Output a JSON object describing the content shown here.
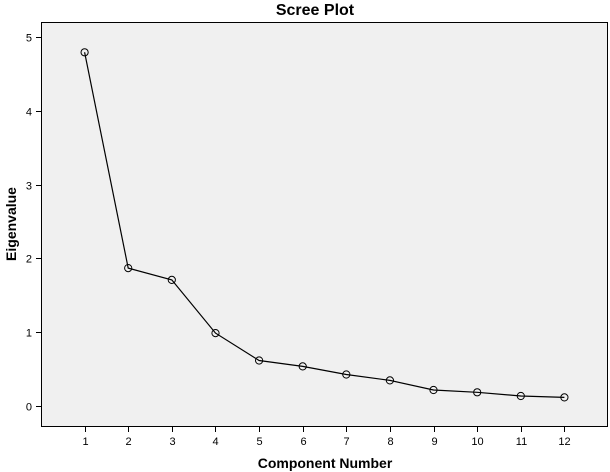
{
  "chart_data": {
    "type": "line",
    "title": "Scree Plot",
    "xlabel": "Component Number",
    "ylabel": "Eigenvalue",
    "x": [
      1,
      2,
      3,
      4,
      5,
      6,
      7,
      8,
      9,
      10,
      11,
      12
    ],
    "series": [
      {
        "values": [
          4.79,
          1.87,
          1.71,
          0.99,
          0.62,
          0.54,
          0.43,
          0.35,
          0.22,
          0.19,
          0.14,
          0.12
        ]
      }
    ],
    "xlim": [
      0,
      13
    ],
    "ylim": [
      -0.28,
      5.2
    ],
    "xticks": [
      "1",
      "2",
      "3",
      "4",
      "5",
      "6",
      "7",
      "8",
      "9",
      "10",
      "11",
      "12"
    ],
    "yticks": [
      "0",
      "1",
      "2",
      "3",
      "4",
      "5"
    ],
    "grid": false,
    "marker": "open-circle",
    "colors": {
      "plot_background": "#f0f0f0",
      "line": "#000000",
      "frame": "#000000"
    }
  }
}
